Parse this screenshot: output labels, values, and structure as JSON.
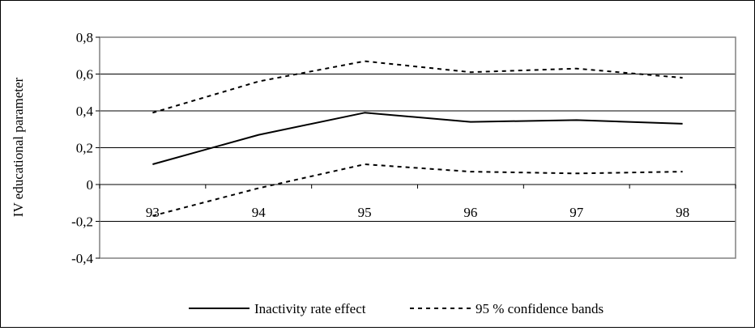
{
  "chart_data": {
    "type": "line",
    "x": [
      "93",
      "94",
      "95",
      "96",
      "97",
      "98"
    ],
    "ylabel": "IV educational parameter",
    "ylim": [
      -0.4,
      0.8
    ],
    "ytick_values": [
      0.8,
      0.6,
      0.4,
      0.2,
      0,
      -0.2,
      -0.4
    ],
    "ytick_labels": [
      "0,8",
      "0,6",
      "0,4",
      "0,2",
      "0",
      "-0,2",
      "-0,4"
    ],
    "grid": true,
    "legend_position": "bottom",
    "series": [
      {
        "name": "Inactivity rate effect",
        "style": "solid",
        "values": [
          0.11,
          0.27,
          0.39,
          0.34,
          0.35,
          0.33
        ]
      },
      {
        "name": "95 % confidence bands",
        "style": "dashed",
        "values": [
          0.39,
          0.56,
          0.67,
          0.61,
          0.63,
          0.58
        ]
      },
      {
        "name": "",
        "style": "dashed",
        "values": [
          -0.17,
          -0.02,
          0.11,
          0.07,
          0.06,
          0.07
        ]
      }
    ],
    "legend": {
      "solid_label": "Inactivity rate effect",
      "dashed_label": "95 % confidence bands"
    },
    "colors": {
      "line": "#000000",
      "plot_border": "#808080",
      "grid": "#000000"
    }
  }
}
